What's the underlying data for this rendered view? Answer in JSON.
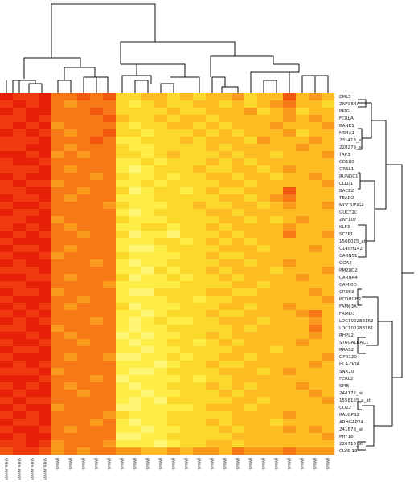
{
  "chart_data": {
    "type": "heatmap",
    "colors": [
      "#e61e08",
      "#ee3a0c",
      "#f45810",
      "#f77816",
      "#fa9a1c",
      "#fcbc22",
      "#fdd82c",
      "#ffec44",
      "#fff676",
      "#ffffb4"
    ],
    "columns": [
      "squamous",
      "squamous",
      "squamous",
      "squamous",
      "small",
      "small",
      "small",
      "small",
      "small",
      "small",
      "small",
      "small",
      "small",
      "small",
      "small",
      "small",
      "small",
      "small",
      "small",
      "small",
      "small",
      "small",
      "small",
      "small",
      "small",
      "small"
    ],
    "rows": [
      "EML5",
      "ZNF354A",
      "PKIG",
      "FCRLA",
      "BANK1",
      "MS4A1",
      "231413_at",
      "228279_at",
      "TAP3",
      "CD180",
      "GRSL1",
      "RUNDC1",
      "CLLU1",
      "BACE2",
      "TEAD2",
      "MOCS/FIG4",
      "GUCY2C",
      "ZNF107",
      "KLF3",
      "SCFP1",
      "1566025_at",
      "C14orf142",
      "CARNS1",
      "GGA2",
      "PM20D2",
      "CARNA4",
      "CAMKID",
      "CREB3",
      "PCDHGB2",
      "FAM63A",
      "FRMD3",
      "LOC100288162",
      "LOC100288161",
      "RHPL2",
      "ST6GALNAC1",
      "RRAS2",
      "GPR120",
      "HLA-DOA",
      "SNX20",
      "FCRL2",
      "SPIB",
      "244172_at",
      "1558155_a_at",
      "CD22",
      "RALGPS2",
      "ARHGAP24",
      "241878_at",
      "PHF18",
      "226718_at",
      "CLVS-19"
    ],
    "values": [
      [
        0,
        1,
        1,
        0,
        3,
        3,
        2,
        3,
        2,
        6,
        6,
        5,
        5,
        6,
        5,
        6,
        5,
        5,
        4,
        6,
        5,
        5,
        2,
        5,
        4,
        5
      ],
      [
        1,
        0,
        1,
        0,
        3,
        4,
        3,
        3,
        3,
        6,
        7,
        6,
        5,
        6,
        6,
        5,
        5,
        6,
        5,
        6,
        5,
        4,
        3,
        5,
        5,
        6
      ],
      [
        0,
        1,
        0,
        0,
        3,
        3,
        3,
        2,
        3,
        6,
        6,
        6,
        6,
        5,
        6,
        6,
        5,
        5,
        5,
        4,
        6,
        5,
        4,
        6,
        5,
        5
      ],
      [
        1,
        1,
        0,
        1,
        3,
        3,
        3,
        3,
        2,
        5,
        6,
        6,
        5,
        6,
        5,
        5,
        6,
        5,
        5,
        5,
        5,
        5,
        4,
        5,
        4,
        5
      ],
      [
        1,
        0,
        1,
        0,
        4,
        3,
        3,
        3,
        3,
        6,
        7,
        6,
        6,
        5,
        5,
        6,
        5,
        6,
        5,
        5,
        5,
        4,
        5,
        5,
        5,
        4
      ],
      [
        0,
        1,
        0,
        1,
        3,
        4,
        3,
        3,
        2,
        6,
        6,
        7,
        6,
        6,
        6,
        5,
        6,
        5,
        6,
        5,
        5,
        5,
        4,
        6,
        5,
        5
      ],
      [
        1,
        1,
        1,
        0,
        3,
        3,
        3,
        2,
        3,
        7,
        7,
        6,
        6,
        6,
        5,
        6,
        5,
        5,
        5,
        6,
        4,
        5,
        5,
        5,
        4,
        5
      ],
      [
        1,
        1,
        0,
        0,
        3,
        4,
        3,
        3,
        3,
        6,
        7,
        7,
        6,
        6,
        6,
        6,
        5,
        6,
        5,
        5,
        5,
        5,
        5,
        4,
        5,
        5
      ],
      [
        0,
        0,
        1,
        0,
        4,
        3,
        4,
        3,
        3,
        6,
        6,
        7,
        6,
        5,
        6,
        6,
        6,
        5,
        6,
        5,
        5,
        6,
        5,
        5,
        5,
        4
      ],
      [
        1,
        0,
        0,
        1,
        3,
        3,
        3,
        3,
        3,
        7,
        7,
        6,
        7,
        6,
        6,
        6,
        5,
        6,
        5,
        6,
        5,
        5,
        5,
        5,
        5,
        5
      ],
      [
        1,
        1,
        1,
        0,
        3,
        4,
        3,
        3,
        3,
        7,
        8,
        7,
        6,
        6,
        6,
        5,
        6,
        6,
        5,
        5,
        6,
        5,
        4,
        5,
        5,
        5
      ],
      [
        0,
        1,
        0,
        0,
        3,
        3,
        3,
        4,
        3,
        6,
        7,
        7,
        6,
        7,
        6,
        6,
        5,
        5,
        6,
        5,
        5,
        6,
        5,
        5,
        4,
        5
      ],
      [
        1,
        0,
        1,
        1,
        4,
        3,
        3,
        3,
        3,
        7,
        7,
        6,
        7,
        6,
        6,
        6,
        6,
        5,
        5,
        6,
        5,
        5,
        5,
        5,
        5,
        4
      ],
      [
        1,
        1,
        0,
        0,
        3,
        3,
        4,
        3,
        3,
        6,
        8,
        7,
        6,
        6,
        7,
        6,
        5,
        6,
        6,
        5,
        5,
        5,
        2,
        5,
        5,
        5
      ],
      [
        0,
        1,
        1,
        0,
        3,
        4,
        3,
        3,
        3,
        7,
        7,
        7,
        6,
        6,
        6,
        6,
        6,
        5,
        5,
        6,
        5,
        4,
        3,
        5,
        5,
        5
      ],
      [
        1,
        0,
        0,
        1,
        3,
        3,
        3,
        3,
        4,
        6,
        7,
        7,
        7,
        6,
        6,
        5,
        6,
        6,
        5,
        5,
        6,
        5,
        4,
        5,
        5,
        4
      ],
      [
        0,
        1,
        1,
        0,
        3,
        3,
        3,
        3,
        3,
        7,
        8,
        7,
        6,
        6,
        6,
        6,
        5,
        5,
        6,
        5,
        5,
        5,
        5,
        5,
        5,
        5
      ],
      [
        1,
        1,
        0,
        0,
        4,
        3,
        3,
        3,
        3,
        6,
        7,
        7,
        7,
        6,
        6,
        6,
        6,
        5,
        5,
        6,
        5,
        6,
        5,
        4,
        5,
        5
      ],
      [
        1,
        0,
        1,
        0,
        3,
        4,
        3,
        3,
        3,
        7,
        7,
        6,
        6,
        7,
        6,
        6,
        5,
        6,
        5,
        5,
        5,
        5,
        4,
        5,
        5,
        5
      ],
      [
        0,
        1,
        0,
        1,
        3,
        3,
        4,
        3,
        3,
        6,
        8,
        7,
        7,
        8,
        6,
        6,
        6,
        5,
        6,
        5,
        5,
        5,
        3,
        5,
        5,
        4
      ],
      [
        1,
        0,
        0,
        0,
        3,
        3,
        3,
        3,
        3,
        7,
        7,
        7,
        6,
        6,
        7,
        6,
        5,
        6,
        5,
        6,
        5,
        5,
        5,
        5,
        5,
        5
      ],
      [
        0,
        1,
        1,
        0,
        3,
        4,
        3,
        3,
        3,
        7,
        8,
        8,
        7,
        6,
        6,
        6,
        6,
        5,
        5,
        5,
        6,
        5,
        5,
        5,
        4,
        5
      ],
      [
        1,
        0,
        0,
        1,
        4,
        3,
        3,
        3,
        3,
        6,
        7,
        7,
        7,
        7,
        6,
        6,
        5,
        6,
        6,
        5,
        5,
        5,
        5,
        5,
        5,
        5
      ],
      [
        0,
        1,
        0,
        0,
        3,
        3,
        3,
        4,
        3,
        7,
        8,
        7,
        7,
        6,
        6,
        6,
        6,
        5,
        5,
        6,
        5,
        5,
        4,
        5,
        5,
        5
      ],
      [
        1,
        1,
        1,
        0,
        3,
        3,
        3,
        3,
        3,
        7,
        7,
        8,
        6,
        7,
        6,
        6,
        5,
        6,
        5,
        5,
        5,
        6,
        5,
        5,
        5,
        4
      ],
      [
        0,
        0,
        1,
        1,
        3,
        4,
        3,
        3,
        3,
        6,
        8,
        7,
        7,
        6,
        7,
        6,
        6,
        5,
        6,
        5,
        5,
        5,
        5,
        4,
        5,
        5
      ],
      [
        1,
        1,
        0,
        0,
        3,
        3,
        3,
        3,
        4,
        7,
        7,
        7,
        7,
        7,
        6,
        6,
        6,
        6,
        5,
        5,
        6,
        5,
        5,
        5,
        5,
        5
      ],
      [
        0,
        1,
        1,
        0,
        4,
        3,
        3,
        3,
        3,
        7,
        8,
        8,
        6,
        6,
        6,
        6,
        5,
        5,
        6,
        6,
        5,
        5,
        5,
        5,
        4,
        5
      ],
      [
        1,
        0,
        0,
        0,
        3,
        3,
        4,
        3,
        3,
        7,
        7,
        7,
        7,
        6,
        6,
        7,
        6,
        6,
        5,
        5,
        5,
        5,
        5,
        5,
        5,
        4
      ],
      [
        0,
        1,
        0,
        1,
        3,
        4,
        3,
        3,
        3,
        6,
        8,
        7,
        7,
        7,
        6,
        6,
        6,
        5,
        5,
        6,
        5,
        5,
        4,
        5,
        5,
        5
      ],
      [
        1,
        0,
        1,
        0,
        3,
        3,
        3,
        3,
        3,
        7,
        7,
        8,
        7,
        6,
        6,
        6,
        5,
        6,
        6,
        5,
        5,
        5,
        5,
        4,
        3,
        5
      ],
      [
        0,
        1,
        0,
        1,
        3,
        3,
        3,
        4,
        3,
        7,
        8,
        7,
        6,
        7,
        7,
        6,
        6,
        5,
        5,
        5,
        6,
        5,
        5,
        5,
        4,
        5
      ],
      [
        1,
        1,
        0,
        0,
        4,
        3,
        3,
        3,
        3,
        7,
        8,
        7,
        7,
        6,
        6,
        6,
        6,
        6,
        5,
        6,
        5,
        5,
        5,
        5,
        3,
        5
      ],
      [
        0,
        0,
        1,
        0,
        3,
        4,
        3,
        3,
        3,
        8,
        7,
        8,
        7,
        7,
        6,
        6,
        5,
        6,
        5,
        5,
        5,
        5,
        5,
        5,
        4,
        5
      ],
      [
        1,
        0,
        0,
        1,
        3,
        3,
        4,
        3,
        3,
        7,
        8,
        7,
        7,
        6,
        6,
        7,
        6,
        5,
        6,
        5,
        5,
        5,
        5,
        4,
        5,
        5
      ],
      [
        0,
        1,
        1,
        0,
        3,
        3,
        3,
        3,
        3,
        7,
        7,
        8,
        7,
        7,
        6,
        6,
        6,
        6,
        5,
        5,
        5,
        6,
        5,
        5,
        5,
        5
      ],
      [
        1,
        0,
        0,
        0,
        3,
        4,
        3,
        3,
        4,
        8,
        8,
        7,
        7,
        6,
        7,
        6,
        6,
        5,
        5,
        6,
        5,
        5,
        5,
        5,
        5,
        4
      ],
      [
        0,
        1,
        0,
        1,
        3,
        3,
        3,
        3,
        3,
        7,
        7,
        7,
        8,
        7,
        6,
        6,
        5,
        6,
        6,
        5,
        5,
        5,
        5,
        5,
        4,
        5
      ],
      [
        1,
        1,
        1,
        0,
        4,
        3,
        3,
        3,
        3,
        7,
        8,
        8,
        7,
        6,
        6,
        6,
        6,
        5,
        5,
        5,
        6,
        5,
        4,
        5,
        5,
        5
      ],
      [
        0,
        0,
        0,
        1,
        3,
        3,
        3,
        4,
        3,
        8,
        7,
        7,
        7,
        7,
        6,
        7,
        6,
        6,
        5,
        5,
        5,
        5,
        5,
        5,
        5,
        5
      ],
      [
        1,
        0,
        1,
        0,
        3,
        4,
        3,
        3,
        3,
        7,
        8,
        7,
        7,
        6,
        6,
        6,
        5,
        6,
        5,
        6,
        5,
        5,
        5,
        4,
        5,
        5
      ],
      [
        0,
        1,
        0,
        0,
        3,
        3,
        4,
        3,
        3,
        7,
        7,
        8,
        7,
        7,
        6,
        6,
        6,
        5,
        6,
        5,
        5,
        5,
        5,
        5,
        4,
        5
      ],
      [
        1,
        0,
        1,
        1,
        3,
        3,
        3,
        3,
        3,
        7,
        8,
        7,
        8,
        6,
        6,
        6,
        6,
        6,
        5,
        5,
        6,
        5,
        5,
        5,
        5,
        4
      ],
      [
        0,
        1,
        0,
        0,
        4,
        3,
        3,
        3,
        3,
        8,
        8,
        7,
        7,
        7,
        7,
        6,
        5,
        5,
        5,
        6,
        5,
        5,
        5,
        5,
        5,
        5
      ],
      [
        1,
        0,
        1,
        0,
        3,
        3,
        3,
        3,
        4,
        6,
        7,
        7,
        7,
        6,
        6,
        6,
        6,
        6,
        5,
        5,
        5,
        5,
        4,
        5,
        5,
        5
      ],
      [
        0,
        1,
        1,
        0,
        3,
        3,
        3,
        4,
        3,
        7,
        8,
        7,
        7,
        6,
        6,
        6,
        5,
        6,
        5,
        5,
        5,
        6,
        5,
        5,
        5,
        5
      ],
      [
        1,
        0,
        0,
        1,
        3,
        4,
        3,
        3,
        3,
        7,
        7,
        8,
        7,
        7,
        6,
        6,
        6,
        5,
        6,
        5,
        5,
        5,
        4,
        5,
        4,
        5
      ],
      [
        0,
        1,
        0,
        0,
        3,
        3,
        3,
        3,
        3,
        8,
        8,
        7,
        7,
        6,
        6,
        6,
        6,
        6,
        5,
        5,
        5,
        5,
        5,
        5,
        5,
        4
      ],
      [
        1,
        1,
        0,
        1,
        4,
        3,
        3,
        3,
        4,
        7,
        7,
        7,
        8,
        7,
        6,
        6,
        5,
        5,
        6,
        5,
        5,
        5,
        5,
        5,
        5,
        5
      ],
      [
        2,
        1,
        1,
        2,
        4,
        3,
        4,
        3,
        3,
        4,
        4,
        5,
        5,
        4,
        5,
        4,
        4,
        5,
        3,
        4,
        4,
        4,
        3,
        4,
        4,
        4
      ]
    ]
  }
}
